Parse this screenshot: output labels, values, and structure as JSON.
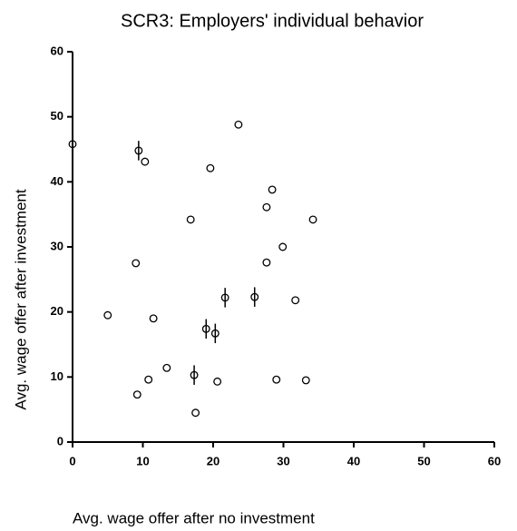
{
  "chart_data": {
    "type": "scatter",
    "title": "SCR3: Employers' individual behavior",
    "x_label": "Avg. wage offer after no investment",
    "y_label": "Avg. wage offer after investment",
    "color": "#000000",
    "x": [
      0,
      9.4,
      10.3,
      23.6,
      19.6,
      28.4,
      27.6,
      16.8,
      34.2,
      29.9,
      9.0,
      27.6,
      21.7,
      25.9,
      31.7,
      5.0,
      11.5,
      19.0,
      20.3,
      13.4,
      17.3,
      10.8,
      20.6,
      29.0,
      33.2,
      9.2,
      17.5
    ],
    "values": [
      45.8,
      44.8,
      43.1,
      48.8,
      42.1,
      38.8,
      36.1,
      34.2,
      34.2,
      30.0,
      27.5,
      27.6,
      22.2,
      22.3,
      21.8,
      19.5,
      19.0,
      17.4,
      16.7,
      11.4,
      10.3,
      9.6,
      9.3,
      9.6,
      9.5,
      7.3,
      4.5
    ],
    "yerr": [
      null,
      1.5,
      null,
      null,
      null,
      null,
      null,
      null,
      null,
      null,
      null,
      null,
      1.5,
      1.5,
      null,
      null,
      null,
      1.5,
      1.5,
      null,
      1.5,
      null,
      null,
      null,
      null,
      null,
      null
    ],
    "xlim": [
      0,
      60
    ],
    "xticks": [
      0,
      10,
      20,
      30,
      40,
      50,
      60
    ],
    "ylim": [
      0,
      60
    ],
    "yticks": [
      0,
      10,
      20,
      30,
      40,
      50,
      60
    ]
  }
}
